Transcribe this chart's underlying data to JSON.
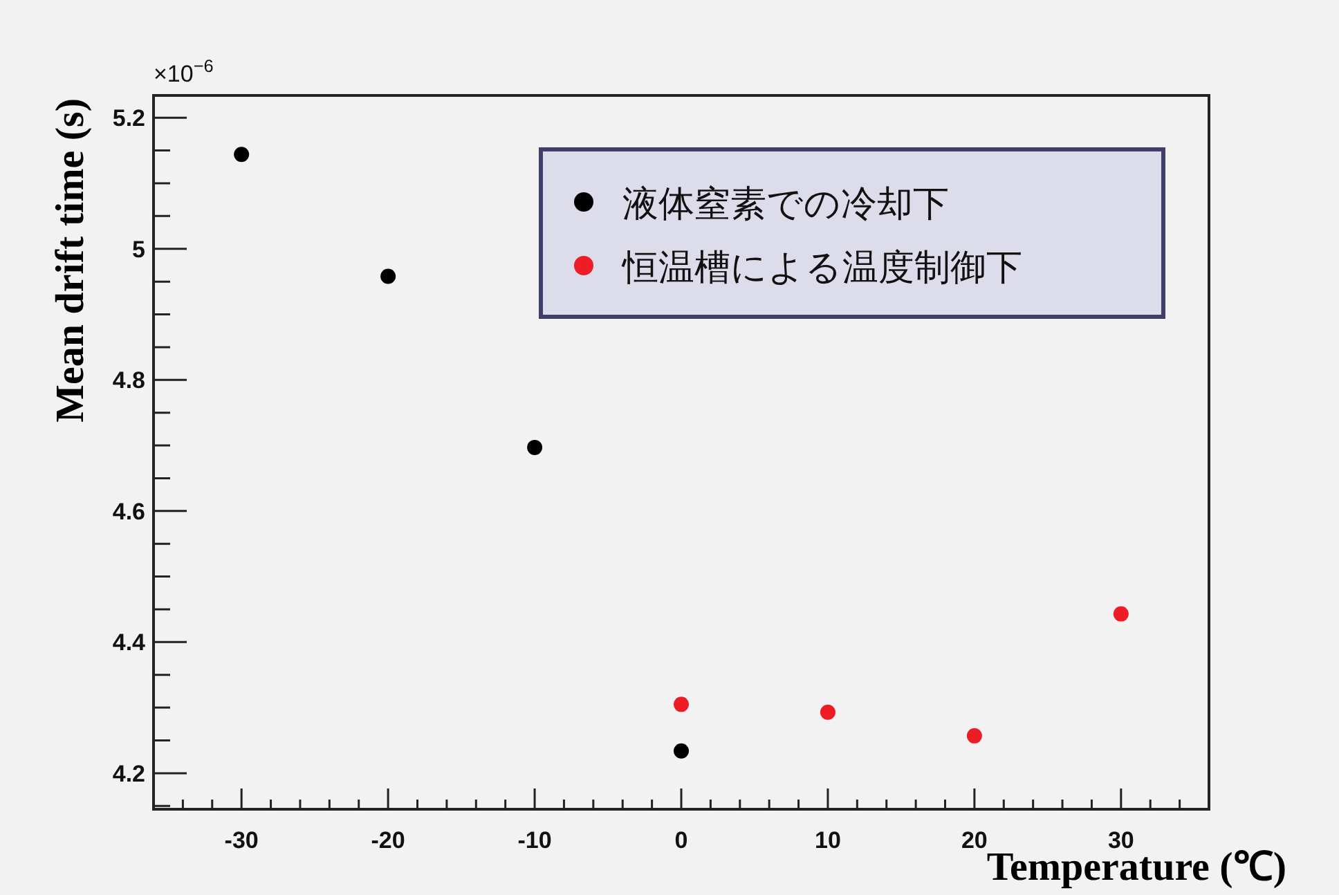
{
  "chart_data": {
    "type": "scatter",
    "xlabel": "Temperature (℃)",
    "ylabel": "Mean drift time (s)",
    "annotations": [
      "×10$^{−6}$"
    ],
    "xlim": [
      -36,
      36
    ],
    "ylim": [
      4.145,
      5.234
    ],
    "xticks": [
      {
        "value": -34,
        "label": null
      },
      {
        "value": -32,
        "label": null
      },
      -30,
      {
        "value": -28,
        "label": null
      },
      {
        "value": -26,
        "label": null
      },
      {
        "value": -24,
        "label": null
      },
      {
        "value": -22,
        "label": null
      },
      -20,
      {
        "value": -18,
        "label": null
      },
      {
        "value": -16,
        "label": null
      },
      {
        "value": -14,
        "label": null
      },
      {
        "value": -12,
        "label": null
      },
      -10,
      {
        "value": -8,
        "label": null
      },
      {
        "value": -6,
        "label": null
      },
      {
        "value": -4,
        "label": null
      },
      {
        "value": -2,
        "label": null
      },
      0,
      {
        "value": 2,
        "label": null
      },
      {
        "value": 4,
        "label": null
      },
      {
        "value": 6,
        "label": null
      },
      {
        "value": 8,
        "label": null
      },
      10,
      {
        "value": 12,
        "label": null
      },
      {
        "value": 14,
        "label": null
      },
      {
        "value": 16,
        "label": null
      },
      {
        "value": 18,
        "label": null
      },
      20,
      {
        "value": 22,
        "label": null
      },
      {
        "value": 24,
        "label": null
      },
      {
        "value": 26,
        "label": null
      },
      {
        "value": 28,
        "label": null
      },
      30,
      {
        "value": 32,
        "label": null
      },
      {
        "value": 34,
        "label": null
      }
    ],
    "yticks": [
      {
        "value": 4.15,
        "label": null
      },
      4.2,
      {
        "value": 4.25,
        "label": null
      },
      {
        "value": 4.3,
        "label": null
      },
      {
        "value": 4.35,
        "label": null
      },
      4.4,
      {
        "value": 4.45,
        "label": null
      },
      {
        "value": 4.5,
        "label": null
      },
      {
        "value": 4.55,
        "label": null
      },
      4.6,
      {
        "value": 4.65,
        "label": null
      },
      {
        "value": 4.7,
        "label": null
      },
      {
        "value": 4.75,
        "label": null
      },
      4.8,
      {
        "value": 4.85,
        "label": null
      },
      {
        "value": 4.9,
        "label": null
      },
      {
        "value": 4.95,
        "label": null
      },
      5,
      {
        "value": 5.05,
        "label": null
      },
      {
        "value": 5.1,
        "label": null
      },
      {
        "value": 5.15,
        "label": null
      },
      5.2
    ],
    "grid": false,
    "legend": "top right",
    "marker": "circle",
    "series": [
      {
        "name": "液体窒素での冷却下",
        "color": "#000000",
        "x": [
          -30,
          -20,
          -10,
          0
        ],
        "values": [
          5.144,
          4.958,
          4.697,
          4.234
        ]
      },
      {
        "name": "恒温槽による温度制御下",
        "color": "#ee1c24",
        "x": [
          0,
          10,
          20,
          30
        ],
        "values": [
          4.305,
          4.293,
          4.257,
          4.443
        ]
      }
    ]
  }
}
